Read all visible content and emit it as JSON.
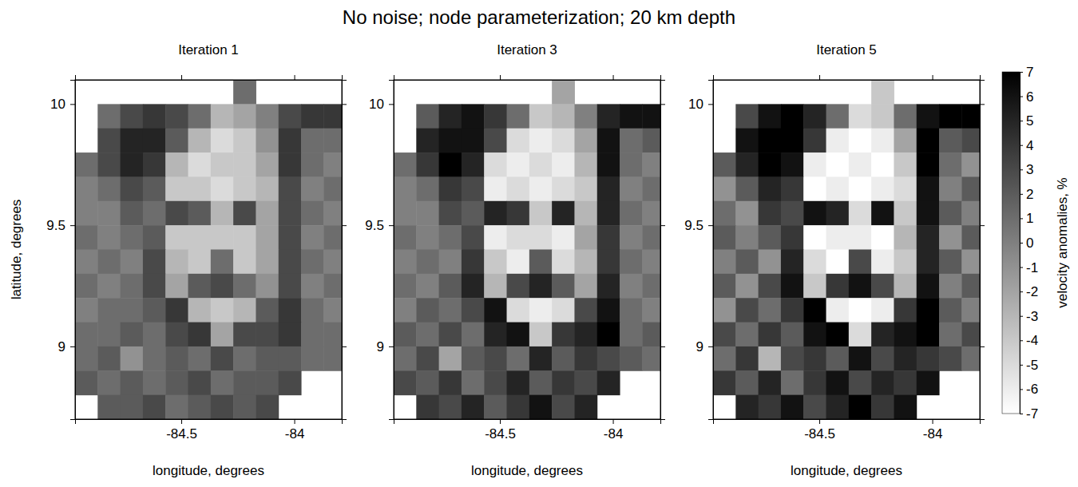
{
  "chart_data": {
    "type": "heatmap",
    "title": "No noise; node parameterization; 20 km depth",
    "xlabel": "longitude, degrees",
    "ylabel": "latitude, degrees",
    "xlim": [
      -84.97,
      -83.79
    ],
    "ylim": [
      8.7,
      10.1
    ],
    "xticks": [
      -84.5,
      -84
    ],
    "yticks": [
      9,
      9.5,
      10
    ],
    "x": [
      -84.92,
      -84.82,
      -84.72,
      -84.62,
      -84.52,
      -84.42,
      -84.32,
      -84.22,
      -84.12,
      -84.02,
      -83.92,
      -83.82
    ],
    "y": [
      10.05,
      9.95,
      9.85,
      9.75,
      9.65,
      9.55,
      9.45,
      9.35,
      9.25,
      9.15,
      9.05,
      8.95,
      8.85,
      8.75
    ],
    "panels": [
      {
        "subtitle": "Iteration 1",
        "cells": [
          [
            null,
            null,
            null,
            null,
            null,
            null,
            null,
            1,
            null,
            null,
            null,
            null
          ],
          [
            null,
            1,
            3,
            4,
            3,
            1,
            -3,
            -2,
            0,
            3,
            4,
            4
          ],
          [
            null,
            3,
            5,
            5,
            2,
            -3,
            -5,
            -4,
            -1,
            4,
            1,
            1
          ],
          [
            1,
            3,
            5,
            4,
            -3,
            -5,
            -4,
            -4,
            -2,
            4,
            1,
            0
          ],
          [
            0,
            1,
            3,
            2,
            -4,
            -4,
            -5,
            -4,
            -3,
            3,
            0,
            1
          ],
          [
            0,
            0,
            2,
            1,
            3,
            2,
            -3,
            3,
            -2,
            3,
            1,
            0
          ],
          [
            1,
            0,
            1,
            2,
            -4,
            -4,
            -4,
            -4,
            -2,
            3,
            0,
            1
          ],
          [
            0,
            1,
            0,
            3,
            -3,
            -4,
            1,
            -4,
            -2,
            3,
            1,
            0
          ],
          [
            1,
            0,
            1,
            3,
            -2,
            2,
            3,
            1,
            -1,
            3,
            0,
            1
          ],
          [
            0,
            1,
            1,
            2,
            4,
            -3,
            -4,
            -3,
            2,
            4,
            1,
            0
          ],
          [
            1,
            1,
            2,
            1,
            3,
            4,
            -2,
            3,
            3,
            4,
            1,
            1
          ],
          [
            1,
            2,
            -1,
            1,
            2,
            1,
            3,
            1,
            2,
            2,
            1,
            1
          ],
          [
            2,
            1,
            2,
            1,
            2,
            3,
            1,
            2,
            2,
            3,
            null,
            null
          ],
          [
            null,
            2,
            2,
            3,
            1,
            2,
            3,
            2,
            3,
            null,
            null,
            null
          ]
        ]
      },
      {
        "subtitle": "Iteration 3",
        "cells": [
          [
            null,
            null,
            null,
            null,
            null,
            null,
            null,
            -2,
            null,
            null,
            null,
            null
          ],
          [
            null,
            2,
            5,
            6,
            4,
            1,
            -4,
            -3,
            0,
            5,
            6,
            6
          ],
          [
            null,
            5,
            6,
            6,
            3,
            -5,
            -6,
            -5,
            -2,
            6,
            1,
            2
          ],
          [
            1,
            4,
            7,
            5,
            -5,
            -6,
            -5,
            -6,
            -3,
            6,
            1,
            0
          ],
          [
            0,
            1,
            4,
            3,
            -6,
            -5,
            -6,
            -5,
            -4,
            5,
            0,
            1
          ],
          [
            0,
            0,
            3,
            2,
            5,
            4,
            -4,
            5,
            -3,
            5,
            1,
            0
          ],
          [
            1,
            0,
            1,
            3,
            -6,
            -5,
            -5,
            -6,
            -2,
            4,
            0,
            1
          ],
          [
            0,
            1,
            0,
            4,
            -4,
            -6,
            2,
            -5,
            -3,
            4,
            1,
            0
          ],
          [
            1,
            0,
            2,
            5,
            -3,
            3,
            5,
            2,
            -2,
            5,
            0,
            1
          ],
          [
            0,
            2,
            1,
            3,
            6,
            -5,
            -6,
            -5,
            3,
            6,
            1,
            0
          ],
          [
            2,
            1,
            3,
            1,
            5,
            6,
            -4,
            4,
            5,
            7,
            1,
            2
          ],
          [
            1,
            3,
            -2,
            2,
            3,
            1,
            5,
            2,
            4,
            3,
            2,
            1
          ],
          [
            3,
            2,
            4,
            1,
            3,
            5,
            2,
            4,
            3,
            5,
            null,
            null
          ],
          [
            null,
            4,
            3,
            5,
            2,
            4,
            6,
            3,
            5,
            null,
            null,
            null
          ]
        ]
      },
      {
        "subtitle": "Iteration 5",
        "cells": [
          [
            null,
            null,
            null,
            null,
            null,
            null,
            null,
            -4,
            null,
            null,
            null,
            null
          ],
          [
            null,
            3,
            6,
            7,
            5,
            1,
            -5,
            -4,
            1,
            6,
            7,
            7
          ],
          [
            null,
            6,
            7,
            7,
            4,
            -6,
            -7,
            -6,
            -2,
            7,
            2,
            3
          ],
          [
            2,
            5,
            7,
            6,
            -6,
            -7,
            -6,
            -7,
            -4,
            7,
            1,
            -1
          ],
          [
            -1,
            2,
            5,
            4,
            -7,
            -6,
            -7,
            -6,
            -5,
            6,
            0,
            2
          ],
          [
            1,
            -1,
            4,
            3,
            6,
            5,
            -5,
            6,
            -4,
            6,
            2,
            0
          ],
          [
            2,
            0,
            2,
            4,
            -7,
            -6,
            -6,
            -7,
            -3,
            5,
            -1,
            2
          ],
          [
            0,
            2,
            -1,
            5,
            -5,
            -7,
            3,
            -6,
            -4,
            5,
            2,
            -1
          ],
          [
            2,
            -1,
            3,
            6,
            -4,
            4,
            6,
            3,
            -3,
            6,
            0,
            2
          ],
          [
            -1,
            3,
            1,
            4,
            7,
            -6,
            -7,
            -6,
            4,
            7,
            2,
            0
          ],
          [
            3,
            1,
            4,
            2,
            6,
            7,
            -5,
            5,
            6,
            7,
            1,
            3
          ],
          [
            1,
            4,
            -3,
            3,
            4,
            2,
            6,
            3,
            5,
            4,
            3,
            1
          ],
          [
            4,
            2,
            5,
            1,
            4,
            6,
            3,
            5,
            4,
            6,
            null,
            null
          ],
          [
            null,
            5,
            4,
            6,
            3,
            5,
            7,
            4,
            6,
            null,
            null,
            null
          ]
        ]
      }
    ],
    "colorbar": {
      "label": "velocity anomalies, %",
      "range": [
        -7,
        7
      ],
      "ticks": [
        -7,
        -6,
        -5,
        -4,
        -3,
        -2,
        -1,
        0,
        1,
        2,
        3,
        4,
        5,
        6,
        7
      ]
    }
  }
}
